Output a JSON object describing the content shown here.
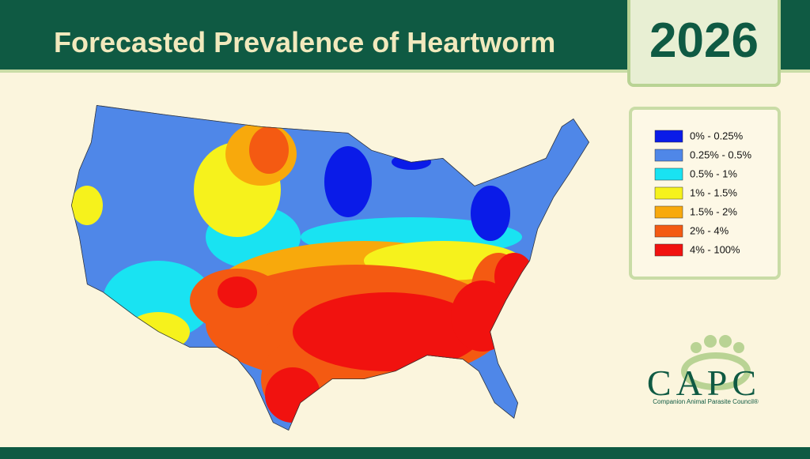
{
  "header": {
    "title": "Forecasted Prevalence of Heartworm",
    "year": "2026"
  },
  "legend": {
    "items": [
      {
        "label": "0% - 0.25%",
        "color": "#0a1be8"
      },
      {
        "label": "0.25% - 0.5%",
        "color": "#4f87e8"
      },
      {
        "label": "0.5% - 1%",
        "color": "#19e3f2"
      },
      {
        "label": "1% - 1.5%",
        "color": "#f6f21c"
      },
      {
        "label": "1.5% - 2%",
        "color": "#f8a90c"
      },
      {
        "label": "2% - 4%",
        "color": "#f45a12"
      },
      {
        "label": "4% - 100%",
        "color": "#f1120f"
      }
    ]
  },
  "logo": {
    "name": "CAPC",
    "subtitle": "Companion Animal Parasite Council®"
  }
}
